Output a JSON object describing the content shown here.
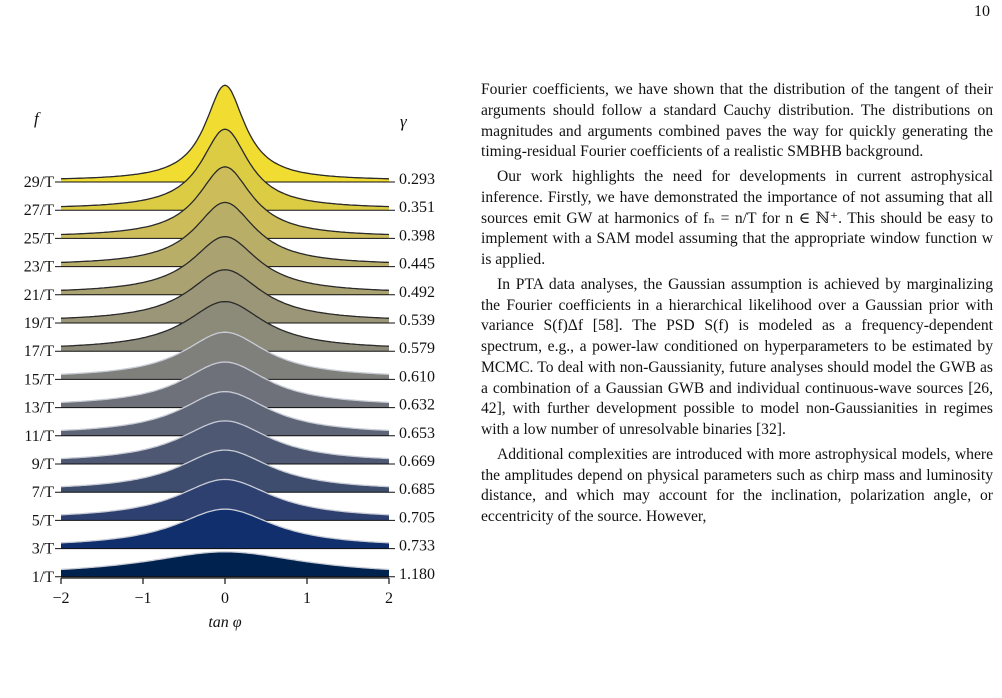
{
  "page_number": "10",
  "figure": {
    "left_label": "f",
    "right_label": "γ",
    "xlabel": "tan φ",
    "x_ticks": [
      "−2",
      "−1",
      "0",
      "1",
      "2"
    ]
  },
  "chart_data": {
    "type": "ridgeline",
    "title": "",
    "xlabel": "tan φ",
    "ylabel_left": "f",
    "ylabel_right": "γ",
    "xlim": [
      -2,
      2
    ],
    "x_ticks": [
      -2,
      -1,
      0,
      1,
      2
    ],
    "distribution": "Cauchy (histogram with fitted curve)",
    "rows": [
      {
        "f": "29/T",
        "gamma": "0.293",
        "color": "#f1dc32"
      },
      {
        "f": "27/T",
        "gamma": "0.351",
        "color": "#dccc44"
      },
      {
        "f": "25/T",
        "gamma": "0.398",
        "color": "#ccbd5a"
      },
      {
        "f": "23/T",
        "gamma": "0.445",
        "color": "#b9ae68"
      },
      {
        "f": "21/T",
        "gamma": "0.492",
        "color": "#aaa271"
      },
      {
        "f": "19/T",
        "gamma": "0.539",
        "color": "#9b9678"
      },
      {
        "f": "17/T",
        "gamma": "0.579",
        "color": "#8c8b7a"
      },
      {
        "f": "15/T",
        "gamma": "0.610",
        "color": "#7f7f7c"
      },
      {
        "f": "13/T",
        "gamma": "0.632",
        "color": "#6e7179"
      },
      {
        "f": "11/T",
        "gamma": "0.653",
        "color": "#5e6577"
      },
      {
        "f": "9/T",
        "gamma": "0.669",
        "color": "#4e5873"
      },
      {
        "f": "7/T",
        "gamma": "0.685",
        "color": "#3e4c6e"
      },
      {
        "f": "5/T",
        "gamma": "0.705",
        "color": "#2d4070"
      },
      {
        "f": "3/T",
        "gamma": "0.733",
        "color": "#102f6c"
      },
      {
        "f": "1/T",
        "gamma": "1.180",
        "color": "#00224e"
      }
    ]
  },
  "text": {
    "paragraphs": [
      "Fourier coefficients, we have shown that the distribution of the tangent of their arguments should follow a standard Cauchy distribution. The distributions on magnitudes and arguments combined paves the way for quickly generating the timing-residual Fourier coefficients of a realistic SMBHB background.",
      "Our work highlights the need for developments in current astrophysical inference. Firstly, we have demonstrated the importance of not assuming that all sources emit GW at harmonics of fₙ = n/T for n ∈ ℕ⁺. This should be easy to implement with a SAM model assuming that the appropriate window function w is applied.",
      "In PTA data analyses, the Gaussian assumption is achieved by marginalizing the Fourier coefficients in a hierarchical likelihood over a Gaussian prior with variance S(f)Δf [58]. The PSD S(f) is modeled as a frequency-dependent spectrum, e.g., a power-law conditioned on hyperparameters to be estimated by MCMC. To deal with non-Gaussianity, future analyses should model the GWB as a combination of a Gaussian GWB and individual continuous-wave sources [26, 42], with further development possible to model non-Gaussianities in regimes with a low number of unresolvable binaries [32].",
      "Additional complexities are introduced with more astrophysical models, where the amplitudes depend on physical parameters such as chirp mass and luminosity distance, and which may account for the inclination, polarization angle, or eccentricity of the source. However,"
    ]
  }
}
